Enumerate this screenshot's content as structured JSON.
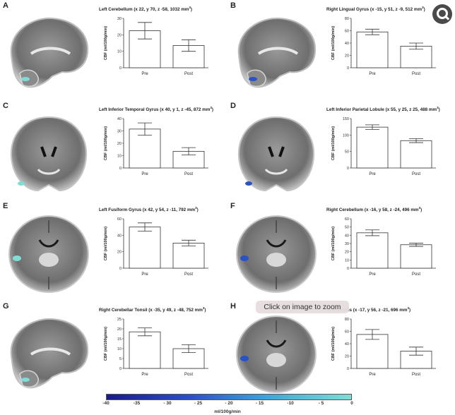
{
  "overlay": {
    "tooltip": "Click on image to zoom",
    "zoom_icon": "zoom-magnifier-icon"
  },
  "colorbar": {
    "ticks": [
      "-40",
      "-35",
      "- 30",
      "- 25",
      "- 20",
      "- 15",
      "-10",
      "- 5",
      "0"
    ],
    "unit": "ml/100g/min",
    "colors": [
      "#1a1a8a",
      "#2a52c8",
      "#3ea3d9",
      "#7fdcd6"
    ]
  },
  "panels": [
    {
      "letter": "A",
      "brain": "sagittal",
      "title": "Left Cerebellum (x 22, y 70, z -58, 1032 mm",
      "superscript": "3",
      "title_end": ")"
    },
    {
      "letter": "B",
      "brain": "sagittal",
      "title": "Right Lingual Gyrus (x -15, y 51, z -9, 512 mm",
      "superscript": "3",
      "title_end": ")"
    },
    {
      "letter": "C",
      "brain": "coronal",
      "title": "Left Inferior Temporal Gyrus (x 40, y 1, z -45, 872 mm",
      "superscript": "3",
      "title_end": ")"
    },
    {
      "letter": "D",
      "brain": "coronal",
      "title": "Left Inferior Parietal Lobule (x 55, y 25, z 25, 488 mm",
      "superscript": "3",
      "title_end": ")"
    },
    {
      "letter": "E",
      "brain": "axial",
      "title": "Left Fusiform Gyrus (x 42, y 54, z -11, 792 mm",
      "superscript": "3",
      "title_end": ")"
    },
    {
      "letter": "F",
      "brain": "axial",
      "title": "Right Cerebellum (x -16, y 58, z -24, 496 mm",
      "superscript": "3",
      "title_end": ")"
    },
    {
      "letter": "G",
      "brain": "sagittal",
      "title": "Right Cerebellar Tonsil (x -35, y 49, z -48, 752 mm",
      "superscript": "3",
      "title_end": ")"
    },
    {
      "letter": "H",
      "brain": "axial",
      "title": "Precuneous (x -17, y 56, z -21, 696 mm",
      "superscript": "3",
      "title_end": ")"
    }
  ],
  "chart_data": [
    {
      "type": "bar",
      "categories": [
        "Pre",
        "Post"
      ],
      "values": [
        22.5,
        13.5
      ],
      "errors": [
        5,
        3.5
      ],
      "ylabel": "CBF (ml/100g/min)",
      "ylim": [
        0,
        30
      ],
      "yticks": [
        0,
        10,
        20,
        30
      ]
    },
    {
      "type": "bar",
      "categories": [
        "Pre",
        "Post"
      ],
      "values": [
        58,
        35
      ],
      "errors": [
        4.5,
        5
      ],
      "ylabel": "CBF (ml/100g/min)",
      "ylim": [
        0,
        80
      ],
      "yticks": [
        0,
        20,
        40,
        60,
        80
      ]
    },
    {
      "type": "bar",
      "categories": [
        "Pre",
        "Post"
      ],
      "values": [
        31.5,
        13.5
      ],
      "errors": [
        5,
        3
      ],
      "ylabel": "CBF (ml/100g/min)",
      "ylim": [
        0,
        40
      ],
      "yticks": [
        0,
        10,
        20,
        30,
        40
      ]
    },
    {
      "type": "bar",
      "categories": [
        "Pre",
        "Post"
      ],
      "values": [
        124,
        83
      ],
      "errors": [
        7,
        6
      ],
      "ylabel": "CBF (ml/100g/min)",
      "ylim": [
        0,
        150
      ],
      "yticks": [
        0,
        50,
        100,
        150
      ]
    },
    {
      "type": "bar",
      "categories": [
        "Pre",
        "Post"
      ],
      "values": [
        50,
        30.5
      ],
      "errors": [
        5,
        3.5
      ],
      "ylabel": "CBF (ml/100g/min)",
      "ylim": [
        0,
        60
      ],
      "yticks": [
        0,
        20,
        40,
        60
      ]
    },
    {
      "type": "bar",
      "categories": [
        "Pre",
        "Post"
      ],
      "values": [
        43,
        28.5
      ],
      "errors": [
        3.5,
        2
      ],
      "ylabel": "CBF (ml/100g/min)",
      "ylim": [
        0,
        60
      ],
      "yticks": [
        0,
        10,
        20,
        30,
        40,
        50,
        60
      ]
    },
    {
      "type": "bar",
      "categories": [
        "Pre",
        "Post"
      ],
      "values": [
        18.5,
        10
      ],
      "errors": [
        2,
        2
      ],
      "ylabel": "CBF (ml/100g/min)",
      "ylim": [
        0,
        25
      ],
      "yticks": [
        0,
        5,
        10,
        15,
        20,
        25
      ]
    },
    {
      "type": "bar",
      "categories": [
        "Pre",
        "Post"
      ],
      "values": [
        55,
        28
      ],
      "errors": [
        8,
        6.5
      ],
      "ylabel": "CBF (ml/100g/min)",
      "ylim": [
        0,
        80
      ],
      "yticks": [
        0,
        20,
        40,
        60,
        80
      ]
    }
  ]
}
